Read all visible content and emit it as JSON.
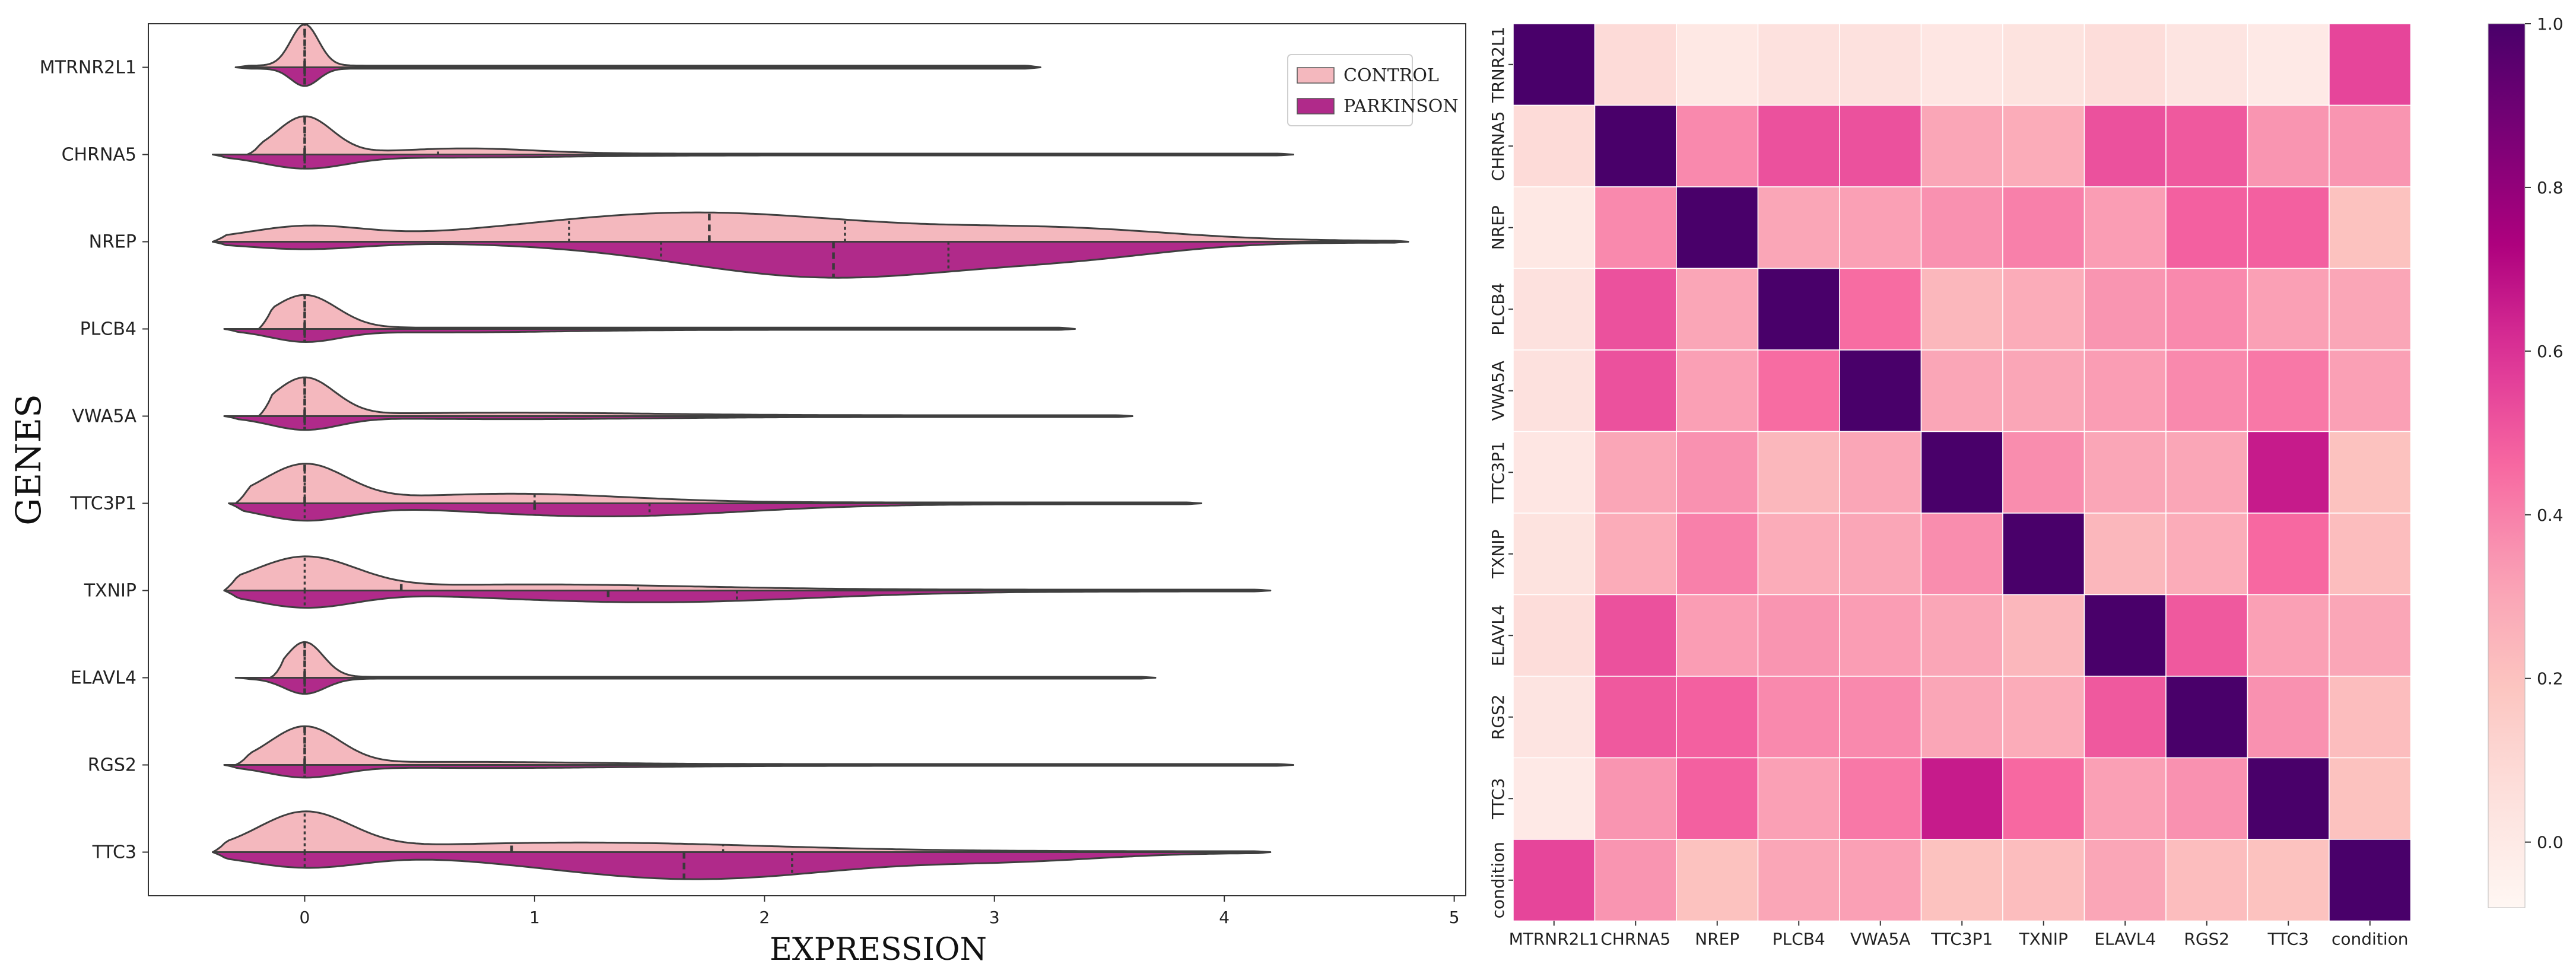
{
  "chart_data": [
    {
      "type": "violin",
      "orientation": "horizontal",
      "split": true,
      "xlabel": "EXPRESSION",
      "ylabel": "GENES",
      "xlim": [
        -0.68,
        5.05
      ],
      "xticks": [
        0,
        1,
        2,
        3,
        4,
        5
      ],
      "legend": {
        "position": "top-right",
        "entries": [
          {
            "label": "CONTROL",
            "color": "#f4b8be"
          },
          {
            "label": "PARKINSON",
            "color": "#b02a8a"
          }
        ]
      },
      "genes": [
        {
          "name": "MTRNR2L1",
          "control": {
            "min": -0.3,
            "max": 3.2,
            "q": [
              0,
              0,
              0
            ],
            "peaks": [
              [
                0,
                0.95,
                0.06
              ]
            ],
            "base": 0.04
          },
          "parkinson": {
            "min": -0.3,
            "max": 3.2,
            "q": [
              0,
              0,
              0
            ],
            "peaks": [
              [
                0,
                0.4,
                0.06
              ]
            ],
            "base": 0.03
          }
        },
        {
          "name": "CHRNA5",
          "control": {
            "min": -0.25,
            "max": 4.3,
            "q": [
              0,
              0,
              0.58
            ],
            "peaks": [
              [
                0,
                0.85,
                0.12
              ],
              [
                0.7,
                0.12,
                0.3
              ]
            ],
            "base": 0.02
          },
          "parkinson": {
            "min": -0.4,
            "max": 4.3,
            "q": [
              0,
              0,
              0
            ],
            "peaks": [
              [
                0,
                0.28,
                0.18
              ],
              [
                0.6,
                0.05,
                0.5
              ]
            ],
            "base": 0.02
          }
        },
        {
          "name": "NREP",
          "control": {
            "min": -0.4,
            "max": 4.8,
            "q": [
              1.15,
              1.76,
              2.35
            ],
            "peaks": [
              [
                0,
                0.3,
                0.25
              ],
              [
                1.7,
                0.65,
                0.75
              ],
              [
                3.3,
                0.25,
                0.5
              ]
            ],
            "base": 0.02
          },
          "parkinson": {
            "min": -0.4,
            "max": 4.8,
            "q": [
              1.55,
              2.3,
              2.8
            ],
            "peaks": [
              [
                0,
                0.15,
                0.25
              ],
              [
                2.3,
                0.8,
                0.65
              ],
              [
                3.4,
                0.22,
                0.4
              ]
            ],
            "base": 0.02
          }
        },
        {
          "name": "PLCB4",
          "control": {
            "min": -0.2,
            "max": 3.35,
            "q": [
              0,
              0,
              0
            ],
            "peaks": [
              [
                0,
                0.75,
                0.14
              ]
            ],
            "base": 0.03
          },
          "parkinson": {
            "min": -0.35,
            "max": 3.35,
            "q": [
              0,
              0,
              0
            ],
            "peaks": [
              [
                0,
                0.25,
                0.15
              ],
              [
                0.6,
                0.06,
                0.5
              ]
            ],
            "base": 0.02
          }
        },
        {
          "name": "VWA5A",
          "control": {
            "min": -0.2,
            "max": 3.6,
            "q": [
              0,
              0,
              0
            ],
            "peaks": [
              [
                0,
                0.85,
                0.13
              ],
              [
                0.9,
                0.06,
                0.6
              ]
            ],
            "base": 0.02
          },
          "parkinson": {
            "min": -0.35,
            "max": 3.6,
            "q": [
              0,
              0,
              0
            ],
            "peaks": [
              [
                0,
                0.28,
                0.15
              ],
              [
                0.9,
                0.05,
                0.6
              ]
            ],
            "base": 0.02
          }
        },
        {
          "name": "TTC3P1",
          "control": {
            "min": -0.3,
            "max": 3.9,
            "q": [
              0,
              0,
              1.0
            ],
            "peaks": [
              [
                0,
                0.85,
                0.18
              ],
              [
                0.9,
                0.2,
                0.5
              ]
            ],
            "base": 0.02
          },
          "parkinson": {
            "min": -0.33,
            "max": 3.9,
            "q": [
              0,
              1.0,
              1.5
            ],
            "peaks": [
              [
                0,
                0.35,
                0.2
              ],
              [
                1.3,
                0.28,
                0.6
              ]
            ],
            "base": 0.02
          }
        },
        {
          "name": "TXNIP",
          "control": {
            "min": -0.35,
            "max": 4.2,
            "q": [
              0,
              0.42,
              1.45
            ],
            "peaks": [
              [
                0,
                0.72,
                0.22
              ],
              [
                1.0,
                0.12,
                0.7
              ]
            ],
            "base": 0.02
          },
          "parkinson": {
            "min": -0.35,
            "max": 4.2,
            "q": [
              0,
              1.32,
              1.88
            ],
            "peaks": [
              [
                0,
                0.35,
                0.22
              ],
              [
                1.5,
                0.25,
                0.7
              ]
            ],
            "base": 0.02
          }
        },
        {
          "name": "ELAVL4",
          "control": {
            "min": -0.15,
            "max": 3.7,
            "q": [
              0,
              0,
              0
            ],
            "peaks": [
              [
                0,
                0.8,
                0.08
              ]
            ],
            "base": 0.02
          },
          "parkinson": {
            "min": -0.3,
            "max": 3.7,
            "q": [
              0,
              0,
              0
            ],
            "peaks": [
              [
                0,
                0.35,
                0.09
              ]
            ],
            "base": 0.02
          }
        },
        {
          "name": "RGS2",
          "control": {
            "min": -0.3,
            "max": 4.3,
            "q": [
              0,
              0,
              0
            ],
            "peaks": [
              [
                0,
                0.85,
                0.15
              ],
              [
                0.7,
                0.05,
                0.5
              ]
            ],
            "base": 0.02
          },
          "parkinson": {
            "min": -0.35,
            "max": 4.3,
            "q": [
              0,
              0,
              0
            ],
            "peaks": [
              [
                0,
                0.25,
                0.16
              ],
              [
                0.8,
                0.05,
                0.6
              ]
            ],
            "base": 0.02
          }
        },
        {
          "name": "TTC3",
          "control": {
            "min": -0.4,
            "max": 4.2,
            "q": [
              0,
              0.9,
              1.82
            ],
            "peaks": [
              [
                0,
                0.85,
                0.2
              ],
              [
                1.2,
                0.2,
                0.8
              ]
            ],
            "base": 0.02
          },
          "parkinson": {
            "min": -0.4,
            "max": 4.2,
            "q": [
              0,
              1.65,
              2.12
            ],
            "peaks": [
              [
                0,
                0.32,
                0.25
              ],
              [
                1.7,
                0.6,
                0.65
              ],
              [
                3.1,
                0.15,
                0.4
              ]
            ],
            "base": 0.02
          }
        }
      ]
    },
    {
      "type": "heatmap",
      "title": "",
      "row_labels": [
        "TRNR2L1",
        "CHRNA5",
        "NREP",
        "PLCB4",
        "VWA5A",
        "TTC3P1",
        "TXNIP",
        "ELAVL4",
        "RGS2",
        "TTC3",
        "condition"
      ],
      "col_labels": [
        "MTRNR2L1",
        "CHRNA5",
        "NREP",
        "PLCB4",
        "VWA5A",
        "TTC3P1",
        "TXNIP",
        "ELAVL4",
        "RGS2",
        "TTC3",
        "condition"
      ],
      "values": [
        [
          1.0,
          0.08,
          0.01,
          0.05,
          0.05,
          0.02,
          0.04,
          0.07,
          0.03,
          0.0,
          0.55
        ],
        [
          0.08,
          1.0,
          0.38,
          0.52,
          0.52,
          0.3,
          0.28,
          0.52,
          0.5,
          0.35,
          0.35
        ],
        [
          0.01,
          0.38,
          1.0,
          0.3,
          0.32,
          0.36,
          0.4,
          0.33,
          0.48,
          0.48,
          0.2
        ],
        [
          0.05,
          0.52,
          0.3,
          1.0,
          0.45,
          0.24,
          0.28,
          0.35,
          0.38,
          0.32,
          0.3
        ],
        [
          0.05,
          0.52,
          0.32,
          0.45,
          1.0,
          0.3,
          0.3,
          0.33,
          0.38,
          0.42,
          0.32
        ],
        [
          0.02,
          0.3,
          0.36,
          0.24,
          0.3,
          1.0,
          0.37,
          0.3,
          0.3,
          0.66,
          0.2
        ],
        [
          0.04,
          0.28,
          0.4,
          0.28,
          0.3,
          0.37,
          1.0,
          0.24,
          0.28,
          0.46,
          0.22
        ],
        [
          0.07,
          0.52,
          0.33,
          0.35,
          0.33,
          0.3,
          0.24,
          1.0,
          0.5,
          0.32,
          0.3
        ],
        [
          0.03,
          0.5,
          0.48,
          0.38,
          0.38,
          0.3,
          0.28,
          0.5,
          1.0,
          0.36,
          0.22
        ],
        [
          0.0,
          0.35,
          0.48,
          0.32,
          0.42,
          0.66,
          0.46,
          0.32,
          0.36,
          1.0,
          0.2
        ],
        [
          0.55,
          0.35,
          0.2,
          0.3,
          0.32,
          0.2,
          0.22,
          0.3,
          0.22,
          0.2,
          1.0
        ]
      ],
      "colormap": "RdPu",
      "colorbar": {
        "min": -0.08,
        "max": 1.0,
        "ticks": [
          0.0,
          0.2,
          0.4,
          0.6,
          0.8,
          1.0
        ],
        "tick_labels": [
          "0.0",
          "0.2",
          "0.4",
          "0.6",
          "0.8",
          "1.0"
        ]
      }
    }
  ]
}
